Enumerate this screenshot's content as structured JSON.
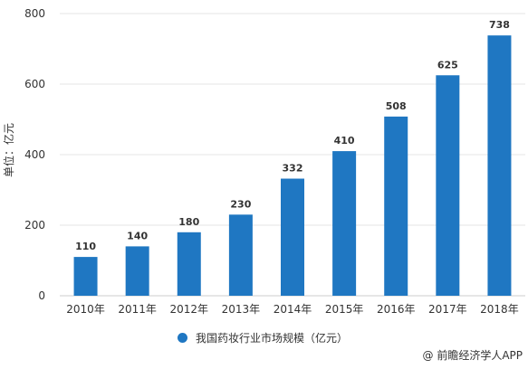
{
  "chart_data": {
    "type": "bar",
    "categories": [
      "2010年",
      "2011年",
      "2012年",
      "2013年",
      "2014年",
      "2015年",
      "2016年",
      "2017年",
      "2018年"
    ],
    "series": [
      {
        "name": "我国药妆行业市场规模（亿元）",
        "values": [
          110,
          140,
          180,
          230,
          332,
          410,
          508,
          625,
          738
        ]
      }
    ],
    "ylabel": "单位：亿元",
    "yticks": [
      0,
      200,
      400,
      600,
      800
    ],
    "ylim": [
      0,
      800
    ],
    "grid": true,
    "legend_position": "bottom",
    "colors": {
      "bar": "#1f77c2",
      "grid": "#e5e5e5"
    }
  },
  "footer": {
    "source": "@ 前瞻经济学人APP"
  }
}
